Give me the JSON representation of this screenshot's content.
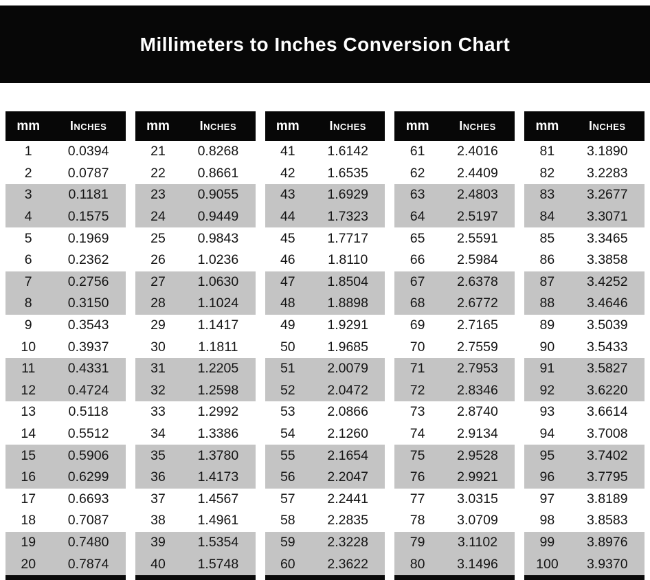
{
  "banner": {
    "title": "Millimeters to Inches Conversion Chart"
  },
  "table": {
    "header": {
      "mm": "mm",
      "inches": "Inches"
    }
  },
  "colors": {
    "banner_bg": "#070707",
    "header_bg": "#070707",
    "shaded_row": "#c4c4c4",
    "header_text": "#ffffff",
    "body_text": "#141414"
  },
  "chart_data": {
    "type": "table",
    "title": "Millimeters to Inches Conversion Chart",
    "columns": [
      "mm",
      "Inches"
    ],
    "row_shading": "rows alternate in pairs: two white rows then two gray rows, starting with white",
    "layout": "5 side-by-side column groups of 20 rows each, mm 1-100",
    "groups": [
      {
        "mm": [
          1,
          2,
          3,
          4,
          5,
          6,
          7,
          8,
          9,
          10,
          11,
          12,
          13,
          14,
          15,
          16,
          17,
          18,
          19,
          20
        ],
        "inches": [
          "0.0394",
          "0.0787",
          "0.1181",
          "0.1575",
          "0.1969",
          "0.2362",
          "0.2756",
          "0.3150",
          "0.3543",
          "0.3937",
          "0.4331",
          "0.4724",
          "0.5118",
          "0.5512",
          "0.5906",
          "0.6299",
          "0.6693",
          "0.7087",
          "0.7480",
          "0.7874"
        ]
      },
      {
        "mm": [
          21,
          22,
          23,
          24,
          25,
          26,
          27,
          28,
          29,
          30,
          31,
          32,
          33,
          34,
          35,
          36,
          37,
          38,
          39,
          40
        ],
        "inches": [
          "0.8268",
          "0.8661",
          "0.9055",
          "0.9449",
          "0.9843",
          "1.0236",
          "1.0630",
          "1.1024",
          "1.1417",
          "1.1811",
          "1.2205",
          "1.2598",
          "1.2992",
          "1.3386",
          "1.3780",
          "1.4173",
          "1.4567",
          "1.4961",
          "1.5354",
          "1.5748"
        ]
      },
      {
        "mm": [
          41,
          42,
          43,
          44,
          45,
          46,
          47,
          48,
          49,
          50,
          51,
          52,
          53,
          54,
          55,
          56,
          57,
          58,
          59,
          60
        ],
        "inches": [
          "1.6142",
          "1.6535",
          "1.6929",
          "1.7323",
          "1.7717",
          "1.8110",
          "1.8504",
          "1.8898",
          "1.9291",
          "1.9685",
          "2.0079",
          "2.0472",
          "2.0866",
          "2.1260",
          "2.1654",
          "2.2047",
          "2.2441",
          "2.2835",
          "2.3228",
          "2.3622"
        ]
      },
      {
        "mm": [
          61,
          62,
          63,
          64,
          65,
          66,
          67,
          68,
          69,
          70,
          71,
          72,
          73,
          74,
          75,
          76,
          77,
          78,
          79,
          80
        ],
        "inches": [
          "2.4016",
          "2.4409",
          "2.4803",
          "2.5197",
          "2.5591",
          "2.5984",
          "2.6378",
          "2.6772",
          "2.7165",
          "2.7559",
          "2.7953",
          "2.8346",
          "2.8740",
          "2.9134",
          "2.9528",
          "2.9921",
          "3.0315",
          "3.0709",
          "3.1102",
          "3.1496"
        ]
      },
      {
        "mm": [
          81,
          82,
          83,
          84,
          85,
          86,
          87,
          88,
          89,
          90,
          91,
          92,
          93,
          94,
          95,
          96,
          97,
          98,
          99,
          100
        ],
        "inches": [
          "3.1890",
          "3.2283",
          "3.2677",
          "3.3071",
          "3.3465",
          "3.3858",
          "3.4252",
          "3.4646",
          "3.5039",
          "3.5433",
          "3.5827",
          "3.6220",
          "3.6614",
          "3.7008",
          "3.7402",
          "3.7795",
          "3.8189",
          "3.8583",
          "3.8976",
          "3.9370"
        ]
      }
    ]
  }
}
